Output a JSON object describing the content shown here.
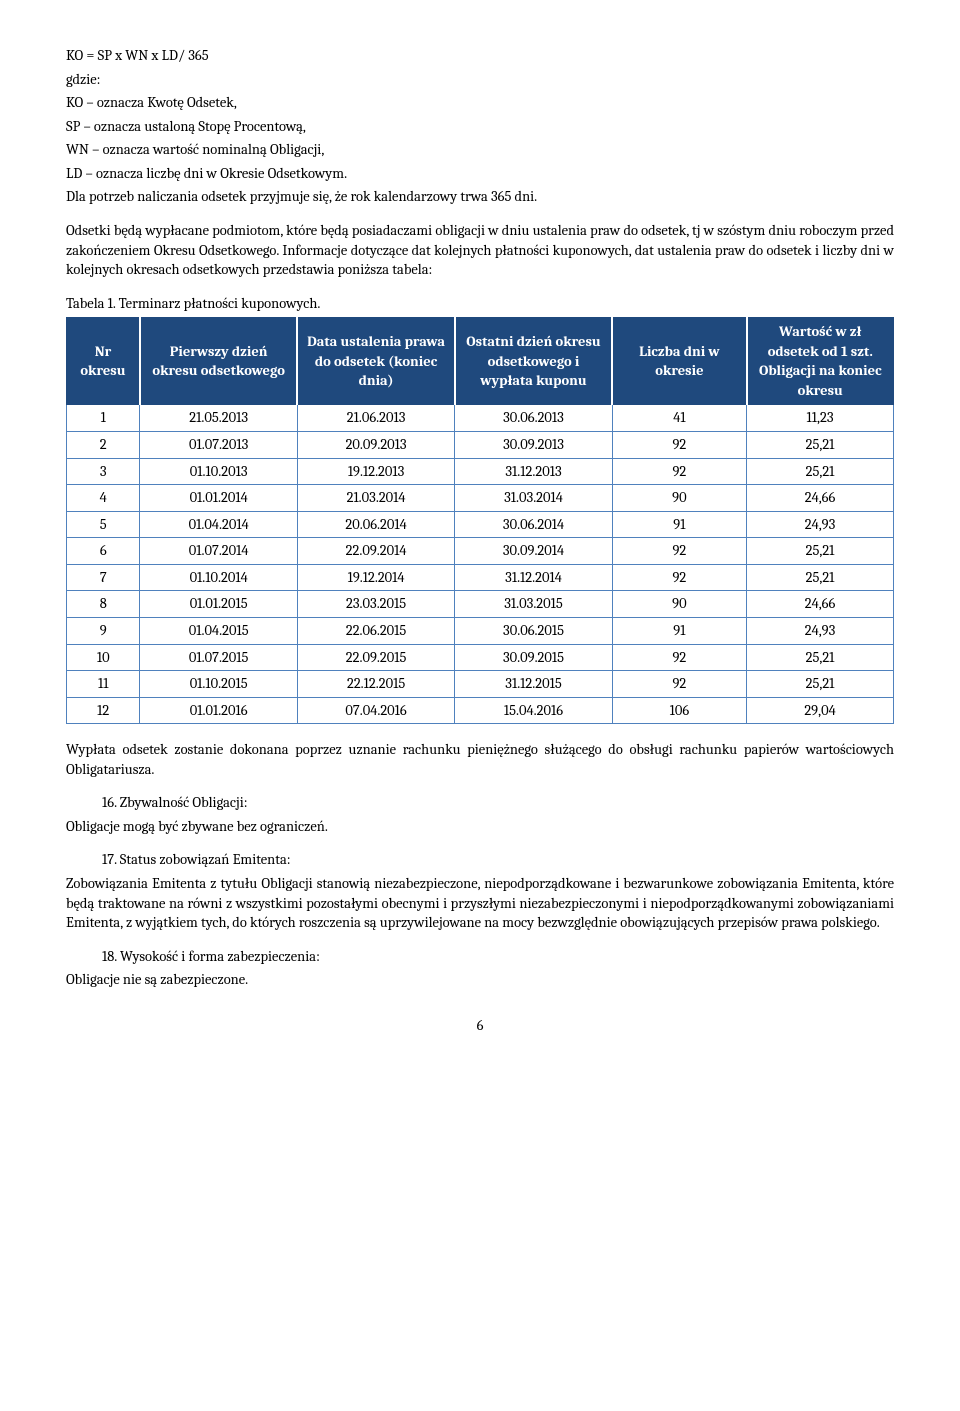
{
  "formula": {
    "line": "KO = SP x WN x LD/ 365",
    "gdzie": "gdzie:",
    "ko": "KO – oznacza Kwotę Odsetek,",
    "sp": "SP – oznacza ustaloną Stopę Procentową,",
    "wn": "WN – oznacza wartość nominalną Obligacji,",
    "ld": "LD – oznacza liczbę dni w Okresie Odsetkowym.",
    "note": "Dla potrzeb naliczania odsetek przyjmuje się, że rok kalendarzowy trwa 365 dni."
  },
  "para2": "Odsetki będą wypłacane podmiotom, które będą posiadaczami obligacji w dniu ustalenia praw do odsetek, tj w szóstym dniu roboczym przed zakończeniem Okresu Odsetkowego. Informacje dotyczące dat kolejnych płatności kuponowych, dat ustalenia praw do odsetek i liczby dni w kolejnych okresach odsetkowych przedstawia poniższa tabela:",
  "table": {
    "caption": "Tabela 1. Terminarz płatności kuponowych.",
    "headers": {
      "c1": "Nr okresu",
      "c2": "Pierwszy dzień okresu odsetkowego",
      "c3": "Data ustalenia prawa do odsetek (koniec dnia)",
      "c4": "Ostatni dzień okresu odsetkowego i wypłata kuponu",
      "c5": "Liczba dni w okresie",
      "c6": "Wartość w zł odsetek od 1 szt. Obligacji na koniec okresu"
    },
    "col_widths": [
      "70px",
      "150px",
      "150px",
      "150px",
      "128px",
      "140px"
    ],
    "rows": [
      [
        "1",
        "21.05.2013",
        "21.06.2013",
        "30.06.2013",
        "41",
        "11,23"
      ],
      [
        "2",
        "01.07.2013",
        "20.09.2013",
        "30.09.2013",
        "92",
        "25,21"
      ],
      [
        "3",
        "01.10.2013",
        "19.12.2013",
        "31.12.2013",
        "92",
        "25,21"
      ],
      [
        "4",
        "01.01.2014",
        "21.03.2014",
        "31.03.2014",
        "90",
        "24,66"
      ],
      [
        "5",
        "01.04.2014",
        "20.06.2014",
        "30.06.2014",
        "91",
        "24,93"
      ],
      [
        "6",
        "01.07.2014",
        "22.09.2014",
        "30.09.2014",
        "92",
        "25,21"
      ],
      [
        "7",
        "01.10.2014",
        "19.12.2014",
        "31.12.2014",
        "92",
        "25,21"
      ],
      [
        "8",
        "01.01.2015",
        "23.03.2015",
        "31.03.2015",
        "90",
        "24,66"
      ],
      [
        "9",
        "01.04.2015",
        "22.06.2015",
        "30.06.2015",
        "91",
        "24,93"
      ],
      [
        "10",
        "01.07.2015",
        "22.09.2015",
        "30.09.2015",
        "92",
        "25,21"
      ],
      [
        "11",
        "01.10.2015",
        "22.12.2015",
        "31.12.2015",
        "92",
        "25,21"
      ],
      [
        "12",
        "01.01.2016",
        "07.04.2016",
        "15.04.2016",
        "106",
        "29,04"
      ]
    ]
  },
  "para3": "Wypłata odsetek zostanie dokonana poprzez uznanie rachunku pieniężnego służącego do obsługi rachunku papierów wartościowych Obligatariusza.",
  "sec16": {
    "title": "16. Zbywalność Obligacji:",
    "body": "Obligacje mogą być zbywane bez ograniczeń."
  },
  "sec17": {
    "title": "17. Status zobowiązań Emitenta:",
    "body": "Zobowiązania Emitenta z tytułu Obligacji stanowią niezabezpieczone, niepodporządkowane i bezwarunkowe zobowiązania Emitenta, które będą traktowane na równi z wszystkimi pozostałymi obecnymi i przyszłymi niezabezpieczonymi i niepodporządkowanymi zobowiązaniami Emitenta, z wyjątkiem tych, do których roszczenia są uprzywilejowane na mocy bezwzględnie obowiązujących przepisów prawa polskiego."
  },
  "sec18": {
    "title": "18. Wysokość i forma zabezpieczenia:",
    "body": "Obligacje nie są zabezpieczone."
  },
  "page_number": "6"
}
